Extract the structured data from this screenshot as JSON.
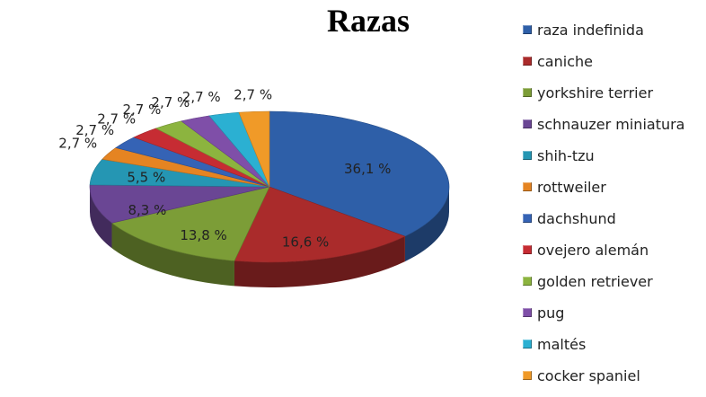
{
  "chart_data": {
    "type": "pie",
    "title": "Razas",
    "categories": [
      "raza indefinida",
      "caniche",
      "yorkshire terrier",
      "schnauzer miniatura",
      "shih-tzu",
      "rottweiler",
      "dachshund",
      "ovejero alemán",
      "golden retriever",
      "pug",
      "maltés",
      "cocker spaniel"
    ],
    "values": [
      36.1,
      16.6,
      13.8,
      8.3,
      5.5,
      2.7,
      2.7,
      2.7,
      2.7,
      2.7,
      2.7,
      2.7
    ],
    "labels": [
      "36,1 %",
      "16,6 %",
      "13,8 %",
      "8,3 %",
      "5,5 %",
      "2,7 %",
      "2,7 %",
      "2,7 %",
      "2,7 %",
      "2,7 %",
      "2,7 %",
      "2,7 %"
    ],
    "colors": [
      "#2E5FA8",
      "#AA2B2B",
      "#7C9D37",
      "#6A4694",
      "#2596B3",
      "#E58422",
      "#3563B5",
      "#C62C33",
      "#8CB43F",
      "#7F4FA8",
      "#2BB0D2",
      "#F09A28"
    ],
    "legend_position": "right",
    "style": "3d"
  }
}
